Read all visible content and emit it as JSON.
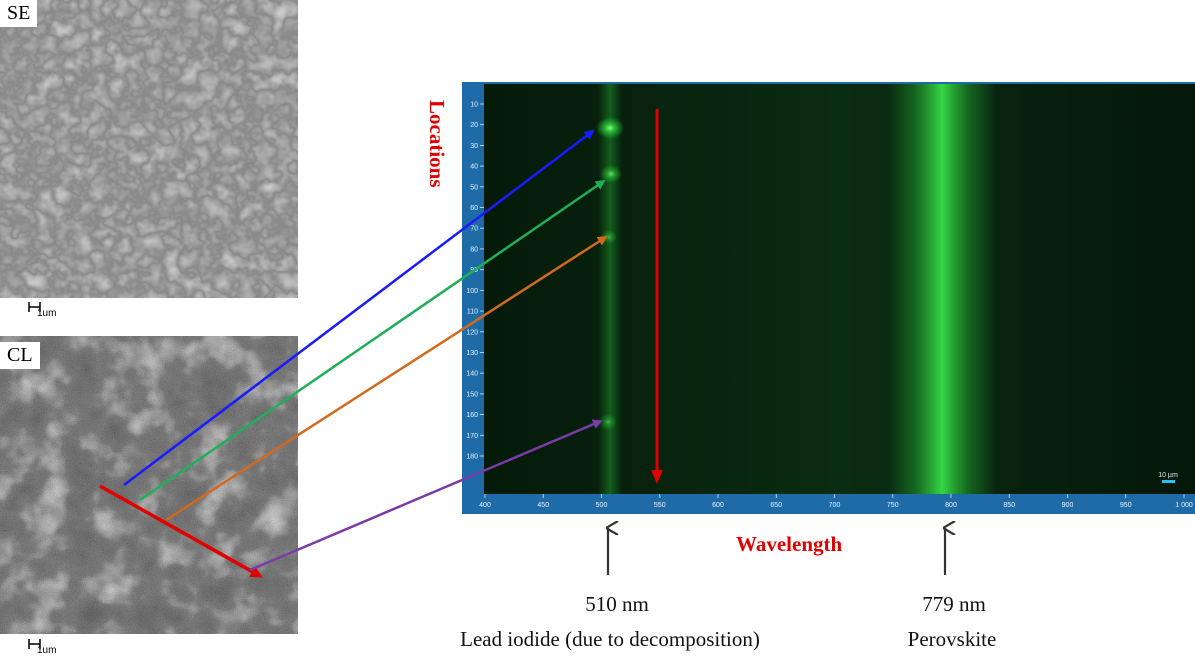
{
  "panels": {
    "se": {
      "label": "SE",
      "scale_text": "1um"
    },
    "cl": {
      "label": "CL",
      "scale_text": "1um"
    }
  },
  "spectrum": {
    "y_axis_title": "Locations",
    "x_axis_title": "Wavelength",
    "x_ticks": [
      "400",
      "450",
      "500",
      "550",
      "600",
      "650",
      "700",
      "750",
      "800",
      "850",
      "900",
      "950",
      "1 000"
    ],
    "y_ticks": [
      "10",
      "20",
      "30",
      "40",
      "50",
      "60",
      "70",
      "80",
      "90",
      "100",
      "110",
      "120",
      "130",
      "140",
      "150",
      "160",
      "170",
      "180"
    ],
    "scale_text": "10 µm"
  },
  "peaks": [
    {
      "wavelength_label": "510 nm",
      "assignment": "Lead iodide (due to decomposition)"
    },
    {
      "wavelength_label": "779 nm",
      "assignment": "Perovskite"
    }
  ],
  "colors": {
    "blue": "#1a1aff",
    "green": "#1fae5a",
    "orange": "#d2691e",
    "purple": "#7a3aa8",
    "red": "#e00000",
    "axis_frame": "#1f6ba8",
    "emission": "#2bd43a"
  }
}
